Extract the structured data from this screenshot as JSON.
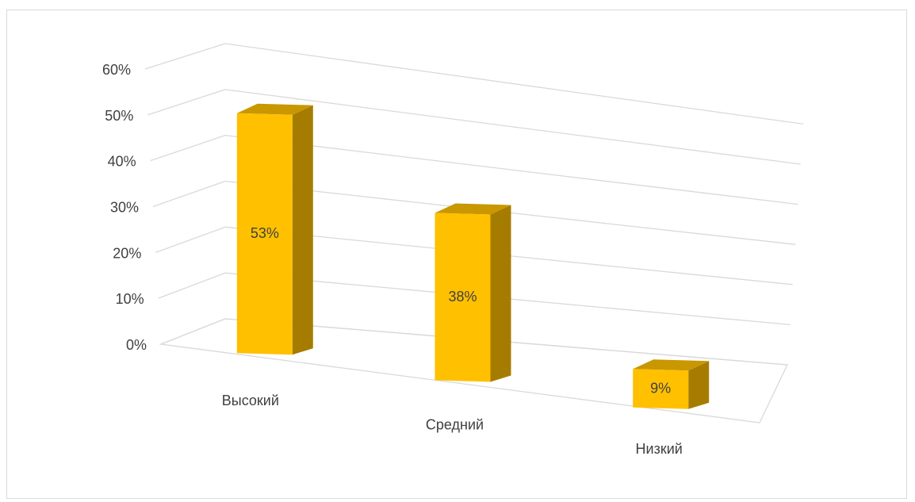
{
  "chart_data": {
    "type": "bar",
    "style": "3d-column",
    "categories": [
      "Высокий",
      "Средний",
      "Низкий"
    ],
    "series": [
      {
        "values": [
          53,
          38,
          9
        ]
      }
    ],
    "data_labels": [
      "53%",
      "38%",
      "9%"
    ],
    "y_ticks": [
      "0%",
      "10%",
      "20%",
      "30%",
      "40%",
      "50%",
      "60%"
    ],
    "ylim": [
      0,
      60
    ],
    "grid": true,
    "legend": "none",
    "title": "",
    "xlabel": "",
    "ylabel": ""
  },
  "colors": {
    "bar_front": "#ffc000",
    "bar_top": "#c99700",
    "bar_side": "#a67c00",
    "grid": "#d9d9d9",
    "text": "#404040"
  }
}
